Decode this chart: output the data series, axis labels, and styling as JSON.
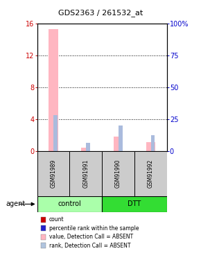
{
  "title": "GDS2363 / 261532_at",
  "samples": [
    "GSM91989",
    "GSM91991",
    "GSM91990",
    "GSM91992"
  ],
  "groups": [
    "control",
    "control",
    "DTT",
    "DTT"
  ],
  "group_colors": {
    "control": "#aaffaa",
    "DTT": "#33dd33"
  },
  "pink_bars": [
    15.3,
    0.4,
    1.8,
    1.1
  ],
  "blue_bars_pct": [
    28.0,
    6.5,
    20.0,
    12.5
  ],
  "ylim_left": [
    0,
    16
  ],
  "ylim_right": [
    0,
    100
  ],
  "yticks_left": [
    0,
    4,
    8,
    12,
    16
  ],
  "yticks_right": [
    0,
    25,
    50,
    75,
    100
  ],
  "left_tick_labels": [
    "0",
    "4",
    "8",
    "12",
    "16"
  ],
  "right_tick_labels": [
    "0",
    "25",
    "50",
    "75",
    "100%"
  ],
  "left_color": "#cc0000",
  "right_color": "#0000cc",
  "legend_items": [
    {
      "label": "count",
      "color": "#cc0000"
    },
    {
      "label": "percentile rank within the sample",
      "color": "#2222cc"
    },
    {
      "label": "value, Detection Call = ABSENT",
      "color": "#FFB6C1"
    },
    {
      "label": "rank, Detection Call = ABSENT",
      "color": "#B0C4DE"
    }
  ],
  "agent_label": "agent"
}
